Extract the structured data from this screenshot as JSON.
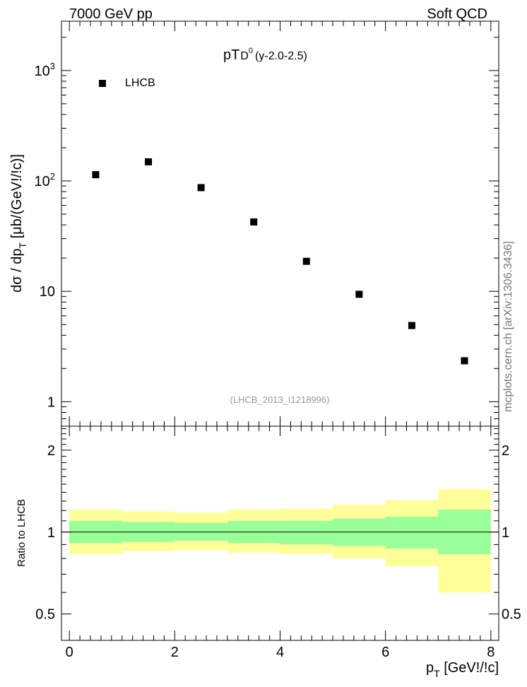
{
  "header": {
    "energy_label": "7000 GeV pp",
    "process_label": "Soft QCD"
  },
  "side_label": "mcplots.cern.ch [arXiv:1306.3436]",
  "chart_data": [
    {
      "type": "scatter",
      "title": {
        "base": "pT",
        "particle": "D",
        "particle_sup": "0",
        "range": "(y-2.0-2.5)"
      },
      "watermark": "(LHCB_2013_I1218996)",
      "ylabel": {
        "part1": "dσ / dp",
        "sub": "T",
        "part2": " [μb/(GeV!/!c)]"
      },
      "yscale": "log",
      "ylim": [
        0.6,
        2800
      ],
      "xlim": [
        -0.15,
        8.15
      ],
      "y_ticks": [
        {
          "value": 1000,
          "base": "10",
          "exp": "3"
        },
        {
          "value": 100,
          "base": "10",
          "exp": "2"
        },
        {
          "value": 10,
          "base": "10",
          "exp": ""
        },
        {
          "value": 1,
          "base": "1",
          "exp": ""
        }
      ],
      "legend": {
        "entry": "LHCB",
        "position": "top-left"
      },
      "series": [
        {
          "name": "LHCB",
          "x": [
            0.5,
            1.5,
            2.5,
            3.5,
            4.5,
            5.5,
            6.5,
            7.5
          ],
          "y": [
            114,
            149,
            87,
            42.5,
            18.7,
            9.4,
            4.9,
            2.35
          ]
        }
      ]
    },
    {
      "type": "area",
      "ylabel": "Ratio to LHCB",
      "xlabel": {
        "base": "p",
        "sub": "T",
        "rest": " [GeV!/!c]"
      },
      "xlim": [
        -0.15,
        8.15
      ],
      "ylim": [
        0.4,
        2.45
      ],
      "x_tick_labels": [
        "0",
        "2",
        "4",
        "6",
        "8"
      ],
      "y_tick_labels": [
        "2",
        "1",
        "0.5"
      ],
      "bins": [
        [
          0,
          1
        ],
        [
          1,
          2
        ],
        [
          2,
          3
        ],
        [
          3,
          4
        ],
        [
          4,
          5
        ],
        [
          5,
          6
        ],
        [
          6,
          7
        ],
        [
          7,
          8
        ]
      ],
      "outer_band": {
        "color": "#ffff99",
        "low": [
          0.83,
          0.85,
          0.86,
          0.84,
          0.83,
          0.8,
          0.75,
          0.6
        ],
        "high": [
          1.21,
          1.19,
          1.18,
          1.21,
          1.22,
          1.26,
          1.31,
          1.44
        ]
      },
      "inner_band": {
        "color": "#99ff99",
        "low": [
          0.91,
          0.92,
          0.93,
          0.91,
          0.9,
          0.89,
          0.87,
          0.83
        ],
        "high": [
          1.1,
          1.09,
          1.08,
          1.1,
          1.1,
          1.12,
          1.14,
          1.21
        ]
      },
      "reference_line": 1
    }
  ]
}
